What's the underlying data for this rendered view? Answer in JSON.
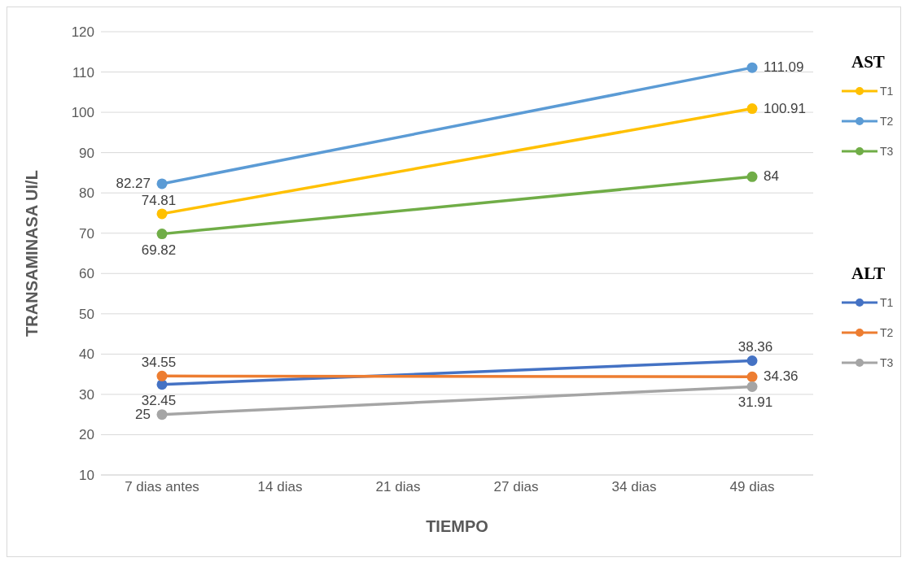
{
  "chart_data": {
    "type": "line",
    "xlabel": "TIEMPO",
    "ylabel": "TRANSAMINASA UI/L",
    "categories": [
      "7 dias antes",
      "14 dias",
      "21 dias",
      "27 dias",
      "34 dias",
      "49 dias"
    ],
    "series": [
      {
        "name": "T1",
        "color": "#ffc000",
        "values": [
          74.81,
          null,
          null,
          null,
          null,
          100.91
        ]
      },
      {
        "name": "T2",
        "color": "#5b9bd5",
        "values": [
          82.27,
          null,
          null,
          null,
          null,
          111.09
        ]
      },
      {
        "name": "T3",
        "color": "#70ad47",
        "values": [
          69.82,
          null,
          null,
          null,
          null,
          84
        ]
      },
      {
        "name": "T1",
        "color": "#4472c4",
        "values": [
          32.45,
          null,
          null,
          null,
          null,
          38.36
        ]
      },
      {
        "name": "T2",
        "color": "#ed7d31",
        "values": [
          34.55,
          null,
          null,
          null,
          null,
          34.36
        ]
      },
      {
        "name": "T3",
        "color": "#a5a5a5",
        "values": [
          25,
          null,
          null,
          null,
          null,
          31.91
        ]
      }
    ],
    "annotations": [
      "AST",
      "ALT"
    ],
    "ylim": [
      10,
      120
    ],
    "yticks": [
      10,
      20,
      30,
      40,
      50,
      60,
      70,
      80,
      90,
      100,
      110,
      120
    ],
    "grid": "y",
    "legend": "right",
    "marker": "circle",
    "line_style": "solid",
    "data_labels": true
  }
}
